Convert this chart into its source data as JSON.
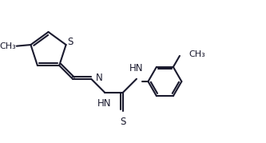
{
  "bg_color": "#ffffff",
  "line_color": "#1a1a2e",
  "bond_width": 1.5,
  "font_size": 8.5,
  "fig_width": 3.33,
  "fig_height": 1.79,
  "dpi": 100,
  "xlim": [
    0,
    10
  ],
  "ylim": [
    0,
    5.37
  ]
}
